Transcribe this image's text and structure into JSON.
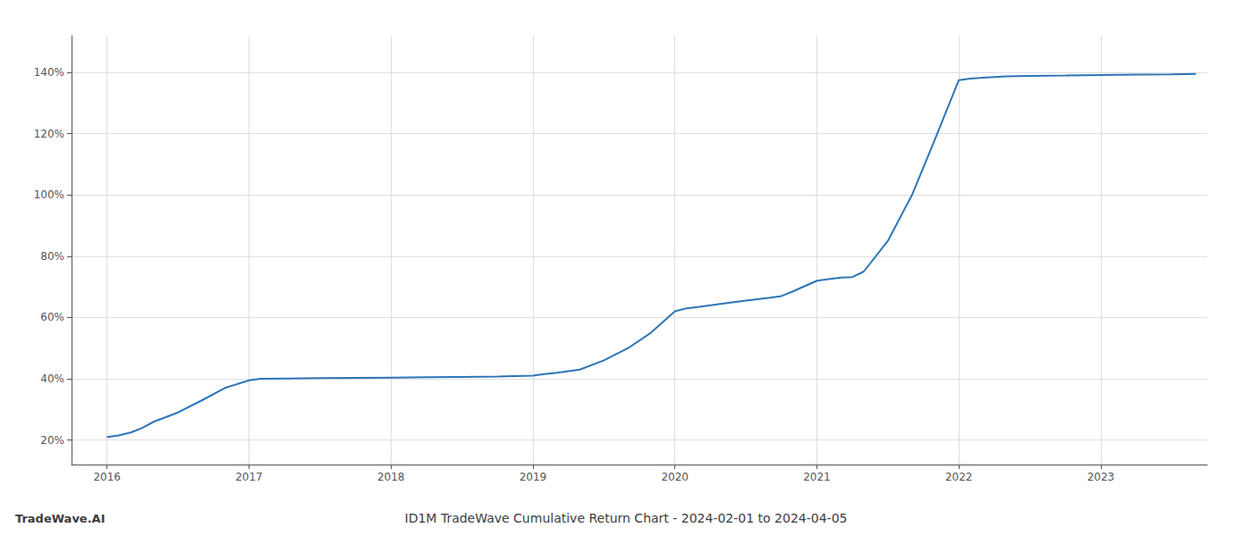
{
  "chart_data": {
    "type": "line",
    "title": "ID1M TradeWave Cumulative Return Chart - 2024-02-01 to 2024-04-05",
    "annotations": [
      "TradeWave.AI"
    ],
    "color": "#2e75b6",
    "x": [
      2016.0,
      2016.08,
      2016.17,
      2016.25,
      2016.33,
      2016.5,
      2016.67,
      2016.83,
      2017.0,
      2017.08,
      2017.25,
      2017.5,
      2017.75,
      2018.0,
      2018.25,
      2018.5,
      2018.75,
      2019.0,
      2019.08,
      2019.17,
      2019.33,
      2019.5,
      2019.67,
      2019.83,
      2020.0,
      2020.08,
      2020.17,
      2020.25,
      2020.33,
      2020.5,
      2020.67,
      2020.75,
      2020.83,
      2021.0,
      2021.08,
      2021.17,
      2021.25,
      2021.33,
      2021.5,
      2021.67,
      2021.83,
      2022.0,
      2022.08,
      2022.17,
      2022.25,
      2022.33,
      2022.5,
      2022.75,
      2023.0,
      2023.25,
      2023.5,
      2023.67
    ],
    "values": [
      21.0,
      21.5,
      22.5,
      24.0,
      26.0,
      29.0,
      33.0,
      37.0,
      39.5,
      40.0,
      40.1,
      40.2,
      40.3,
      40.4,
      40.5,
      40.6,
      40.7,
      41.0,
      41.5,
      42.0,
      43.0,
      46.0,
      50.0,
      55.0,
      62.0,
      63.0,
      63.5,
      64.0,
      64.5,
      65.5,
      66.5,
      67.0,
      68.5,
      72.0,
      72.5,
      73.0,
      73.2,
      75.0,
      85.0,
      100.0,
      118.0,
      137.5,
      138.0,
      138.3,
      138.5,
      138.7,
      138.9,
      139.0,
      139.2,
      139.3,
      139.4,
      139.5
    ],
    "xlim": [
      2015.75,
      2023.75
    ],
    "ylim": [
      12,
      152
    ],
    "xticks": [
      2016,
      2017,
      2018,
      2019,
      2020,
      2021,
      2022,
      2023
    ],
    "yticks": [
      {
        "value": 20,
        "label": "20%"
      },
      {
        "value": 40,
        "label": "40%"
      },
      {
        "value": 60,
        "label": "60%"
      },
      {
        "value": 80,
        "label": "80%"
      },
      {
        "value": 100,
        "label": "100%"
      },
      {
        "value": 120,
        "label": "120%"
      },
      {
        "value": 140,
        "label": "140%"
      }
    ],
    "grid": true
  }
}
